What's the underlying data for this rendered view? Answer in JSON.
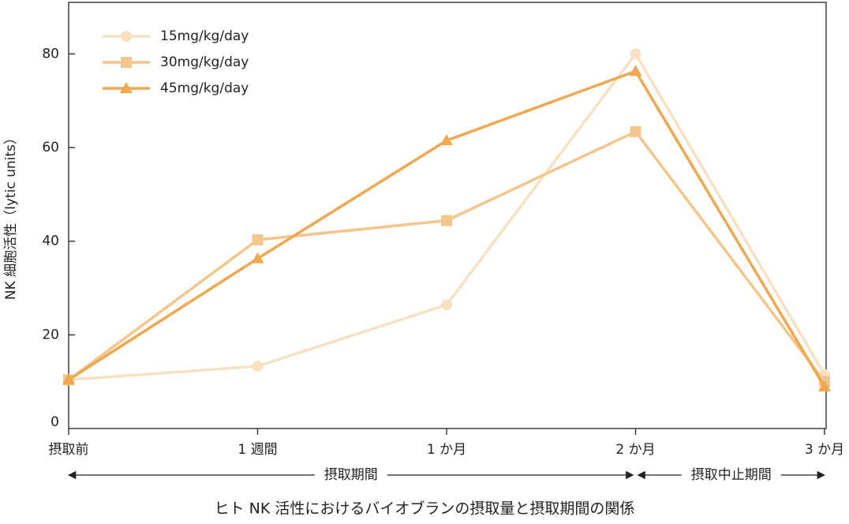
{
  "chart_data": {
    "type": "line",
    "y_label": "NK 細胞活性（lytic units）",
    "caption": "ヒト NK 活性におけるバイオブランの摂取量と摂取期間の関係",
    "categories": [
      "摂取前",
      "1 週間",
      "1 か月",
      "2 か月",
      "3 か月"
    ],
    "periods": [
      "摂取期間",
      "摂取中止期間"
    ],
    "series": [
      {
        "name": "15mg/kg/day",
        "color": "#f8e0c3",
        "marker": "circle",
        "values": [
          10.4,
          13.3,
          26.4,
          80,
          11.5
        ]
      },
      {
        "name": "30mg/kg/day",
        "color": "#f4c68b",
        "marker": "square",
        "values": [
          10.4,
          40.3,
          44.4,
          63.4,
          10
        ]
      },
      {
        "name": "45mg/kg/day",
        "color": "#f0a850",
        "marker": "triangle",
        "values": [
          10.4,
          36.3,
          61.5,
          76.3,
          8.9
        ]
      }
    ],
    "ylim": [
      0,
      91
    ],
    "yticks": [
      0,
      20,
      40,
      60,
      80
    ],
    "legend": "upper-left"
  }
}
